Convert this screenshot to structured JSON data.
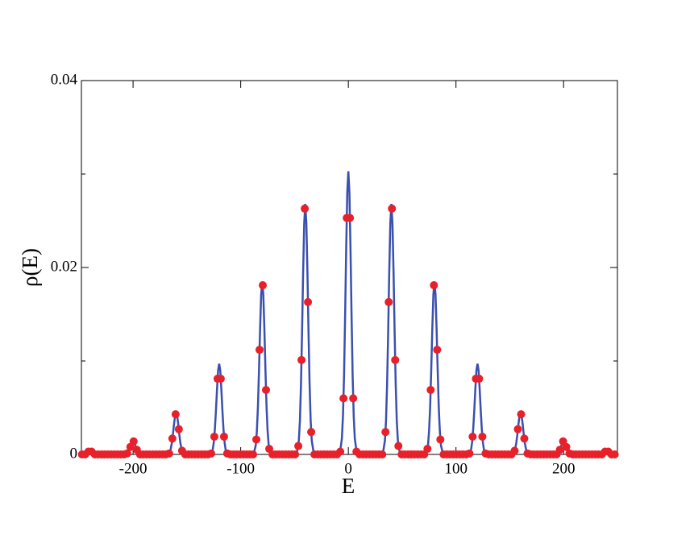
{
  "chart_data": {
    "type": "line",
    "xlabel": "E",
    "ylabel": "ρ(E)",
    "xlim": [
      -248,
      250
    ],
    "ylim": [
      0,
      0.04
    ],
    "xticks": [
      -200,
      -100,
      0,
      100,
      200
    ],
    "yticks": [
      0,
      0.02,
      0.04
    ],
    "yminor_ticks": [
      0.01,
      0.03
    ],
    "series": [
      {
        "type": "line",
        "color": "#3a4fb0",
        "x": [
          -248,
          -246,
          -245,
          -244,
          -243,
          -242,
          -241,
          -240,
          -239,
          -238,
          -237,
          -236,
          -235,
          -234,
          -232,
          -208,
          -206,
          -205,
          -204,
          -203,
          -202,
          -201,
          -200,
          -199,
          -198,
          -197,
          -196,
          -195,
          -194,
          -192,
          -168,
          -166,
          -165,
          -164,
          -163,
          -162,
          -161,
          -160,
          -159,
          -158,
          -157,
          -156,
          -155,
          -154,
          -152,
          -128,
          -126,
          -125,
          -124,
          -123,
          -122,
          -121,
          -120,
          -119,
          -118,
          -117,
          -116,
          -115,
          -114,
          -112,
          -88,
          -86,
          -85,
          -84,
          -83,
          -82,
          -81,
          -80,
          -79,
          -78,
          -77,
          -76,
          -75,
          -74,
          -72,
          -48,
          -46,
          -45,
          -44,
          -43,
          -42,
          -41,
          -40,
          -39,
          -38,
          -37,
          -36,
          -35,
          -34,
          -32,
          -8,
          -6,
          -5,
          -4,
          -3,
          -2,
          -1,
          0,
          1,
          2,
          3,
          4,
          5,
          6,
          8,
          32,
          34,
          35,
          36,
          37,
          38,
          39,
          40,
          41,
          42,
          43,
          44,
          45,
          46,
          48,
          72,
          74,
          75,
          76,
          77,
          78,
          79,
          80,
          81,
          82,
          83,
          84,
          85,
          86,
          88,
          112,
          114,
          115,
          116,
          117,
          118,
          119,
          120,
          121,
          122,
          123,
          124,
          125,
          126,
          128,
          152,
          154,
          155,
          156,
          157,
          158,
          159,
          160,
          161,
          162,
          163,
          164,
          165,
          166,
          168,
          192,
          194,
          195,
          196,
          197,
          198,
          199,
          200,
          201,
          202,
          203,
          204,
          205,
          206,
          208,
          232,
          234,
          235,
          236,
          237,
          238,
          239,
          240,
          241,
          242,
          243,
          244,
          245,
          246,
          248,
          250
        ],
        "values": [
          0,
          0,
          0,
          0.0001,
          0.0001,
          0.0002,
          0.0003,
          0.0003,
          0.0003,
          0.0002,
          0.0001,
          0.0001,
          0,
          0,
          0,
          0,
          0.0001,
          0.0002,
          0.0004,
          0.0007,
          0.001,
          0.0013,
          0.0014,
          0.0013,
          0.001,
          0.0007,
          0.0004,
          0.0002,
          0.0001,
          0,
          0,
          0.0002,
          0.0006,
          0.0012,
          0.0021,
          0.0032,
          0.0041,
          0.0044,
          0.0041,
          0.0032,
          0.0021,
          0.0012,
          0.0006,
          0.0002,
          0,
          0,
          0.0005,
          0.0013,
          0.0027,
          0.0047,
          0.007,
          0.009,
          0.0097,
          0.009,
          0.007,
          0.0047,
          0.0027,
          0.0013,
          0.0005,
          0,
          0,
          0.001,
          0.0025,
          0.0051,
          0.009,
          0.0134,
          0.0171,
          0.0185,
          0.0171,
          0.0134,
          0.009,
          0.0051,
          0.0025,
          0.001,
          0,
          0,
          0.0015,
          0.0036,
          0.0075,
          0.0131,
          0.0195,
          0.0247,
          0.0268,
          0.0247,
          0.0195,
          0.0131,
          0.0075,
          0.0036,
          0.0015,
          0,
          0,
          0.0017,
          0.0041,
          0.0084,
          0.0148,
          0.022,
          0.028,
          0.0303,
          0.028,
          0.022,
          0.0148,
          0.0084,
          0.0041,
          0.0017,
          0,
          0,
          0.0015,
          0.0036,
          0.0075,
          0.0131,
          0.0195,
          0.0247,
          0.0268,
          0.0247,
          0.0195,
          0.0131,
          0.0075,
          0.0036,
          0.0015,
          0,
          0,
          0.001,
          0.0025,
          0.0051,
          0.009,
          0.0134,
          0.0171,
          0.0185,
          0.0171,
          0.0134,
          0.009,
          0.0051,
          0.0025,
          0.001,
          0,
          0,
          0.0005,
          0.0013,
          0.0027,
          0.0047,
          0.007,
          0.009,
          0.0097,
          0.009,
          0.007,
          0.0047,
          0.0027,
          0.0013,
          0.0005,
          0,
          0,
          0.0002,
          0.0006,
          0.0012,
          0.0021,
          0.0032,
          0.0041,
          0.0044,
          0.0041,
          0.0032,
          0.0021,
          0.0012,
          0.0006,
          0.0002,
          0,
          0,
          0.0001,
          0.0002,
          0.0004,
          0.0007,
          0.001,
          0.0013,
          0.0014,
          0.0013,
          0.001,
          0.0007,
          0.0004,
          0.0002,
          0.0001,
          0,
          0,
          0,
          0,
          0.0001,
          0.0001,
          0.0002,
          0.0003,
          0.0003,
          0.0003,
          0.0002,
          0.0001,
          0.0001,
          0,
          0,
          0,
          0
        ]
      },
      {
        "type": "scatter",
        "color": "#e8202a",
        "x": [
          -247.5,
          -244.5,
          -241.5,
          -238.5,
          -235.5,
          -232.5,
          -229.5,
          -226.5,
          -223.5,
          -220.5,
          -217.5,
          -214.5,
          -211.5,
          -208.5,
          -205.5,
          -202.5,
          -199.5,
          -196.5,
          -193.5,
          -190.5,
          -187.5,
          -184.5,
          -181.5,
          -178.5,
          -175.5,
          -172.5,
          -169.5,
          -166.5,
          -163.5,
          -160.5,
          -157.5,
          -154.5,
          -151.5,
          -148.5,
          -145.5,
          -142.5,
          -139.5,
          -136.5,
          -133.5,
          -130.5,
          -127.5,
          -124.5,
          -121.5,
          -118.5,
          -115.5,
          -112.5,
          -109.5,
          -106.5,
          -103.5,
          -100.5,
          -97.5,
          -94.5,
          -91.5,
          -88.5,
          -85.5,
          -82.5,
          -79.5,
          -76.5,
          -73.5,
          -70.5,
          -67.5,
          -64.5,
          -61.5,
          -58.5,
          -55.5,
          -52.5,
          -49.5,
          -46.5,
          -43.5,
          -40.5,
          -37.5,
          -34.5,
          -31.5,
          -28.5,
          -25.5,
          -22.5,
          -19.5,
          -16.5,
          -13.5,
          -10.5,
          -7.5,
          -4.5,
          -1.5,
          1.5,
          4.5,
          7.5,
          10.5,
          13.5,
          16.5,
          19.5,
          22.5,
          25.5,
          28.5,
          31.5,
          34.5,
          37.5,
          40.5,
          43.5,
          46.5,
          49.5,
          52.5,
          55.5,
          58.5,
          61.5,
          64.5,
          67.5,
          70.5,
          73.5,
          76.5,
          79.5,
          82.5,
          85.5,
          88.5,
          91.5,
          94.5,
          97.5,
          100.5,
          103.5,
          106.5,
          109.5,
          112.5,
          115.5,
          118.5,
          121.5,
          124.5,
          127.5,
          130.5,
          133.5,
          136.5,
          139.5,
          142.5,
          145.5,
          148.5,
          151.5,
          154.5,
          157.5,
          160.5,
          163.5,
          166.5,
          169.5,
          172.5,
          175.5,
          178.5,
          181.5,
          184.5,
          187.5,
          190.5,
          193.5,
          196.5,
          199.5,
          202.5,
          205.5,
          208.5,
          211.5,
          214.5,
          217.5,
          220.5,
          223.5,
          226.5,
          229.5,
          232.5,
          235.5,
          238.5,
          241.5,
          244.5,
          247.5
        ],
        "values": [
          0,
          0,
          0.0003,
          0.0003,
          0,
          0,
          0,
          0,
          0,
          0,
          0,
          0,
          0,
          0,
          0.0001,
          0.0008,
          0.0014,
          0.0005,
          0,
          0,
          0,
          0,
          0,
          0,
          0,
          0,
          0,
          0.0001,
          0.0017,
          0.0043,
          0.0027,
          0.0004,
          0,
          0,
          0,
          0,
          0,
          0,
          0,
          0,
          0.0001,
          0.0019,
          0.0081,
          0.0081,
          0.0019,
          0.0001,
          0,
          0,
          0,
          0,
          0,
          0,
          0,
          0,
          0.0016,
          0.0112,
          0.0181,
          0.0069,
          0.0006,
          0,
          0,
          0,
          0,
          0,
          0,
          0,
          0,
          0.0009,
          0.0101,
          0.0263,
          0.0163,
          0.0024,
          0,
          0,
          0,
          0,
          0,
          0,
          0,
          0,
          0.0003,
          0.006,
          0.0253,
          0.0253,
          0.006,
          0.0003,
          0,
          0,
          0,
          0,
          0,
          0,
          0,
          0,
          0.0024,
          0.0163,
          0.0263,
          0.0101,
          0.0009,
          0,
          0,
          0,
          0,
          0,
          0,
          0,
          0,
          0.0006,
          0.0069,
          0.0181,
          0.0112,
          0.0016,
          0,
          0,
          0,
          0,
          0,
          0,
          0,
          0,
          0.0001,
          0.0019,
          0.0081,
          0.0081,
          0.0019,
          0.0001,
          0,
          0,
          0,
          0,
          0,
          0,
          0,
          0,
          0.0004,
          0.0027,
          0.0043,
          0.0017,
          0.0001,
          0,
          0,
          0,
          0,
          0,
          0,
          0,
          0,
          0,
          0.0005,
          0.0014,
          0.0008,
          0.0001,
          0,
          0,
          0,
          0,
          0,
          0,
          0,
          0,
          0,
          0,
          0.0003,
          0.0003,
          0,
          0
        ]
      }
    ]
  }
}
